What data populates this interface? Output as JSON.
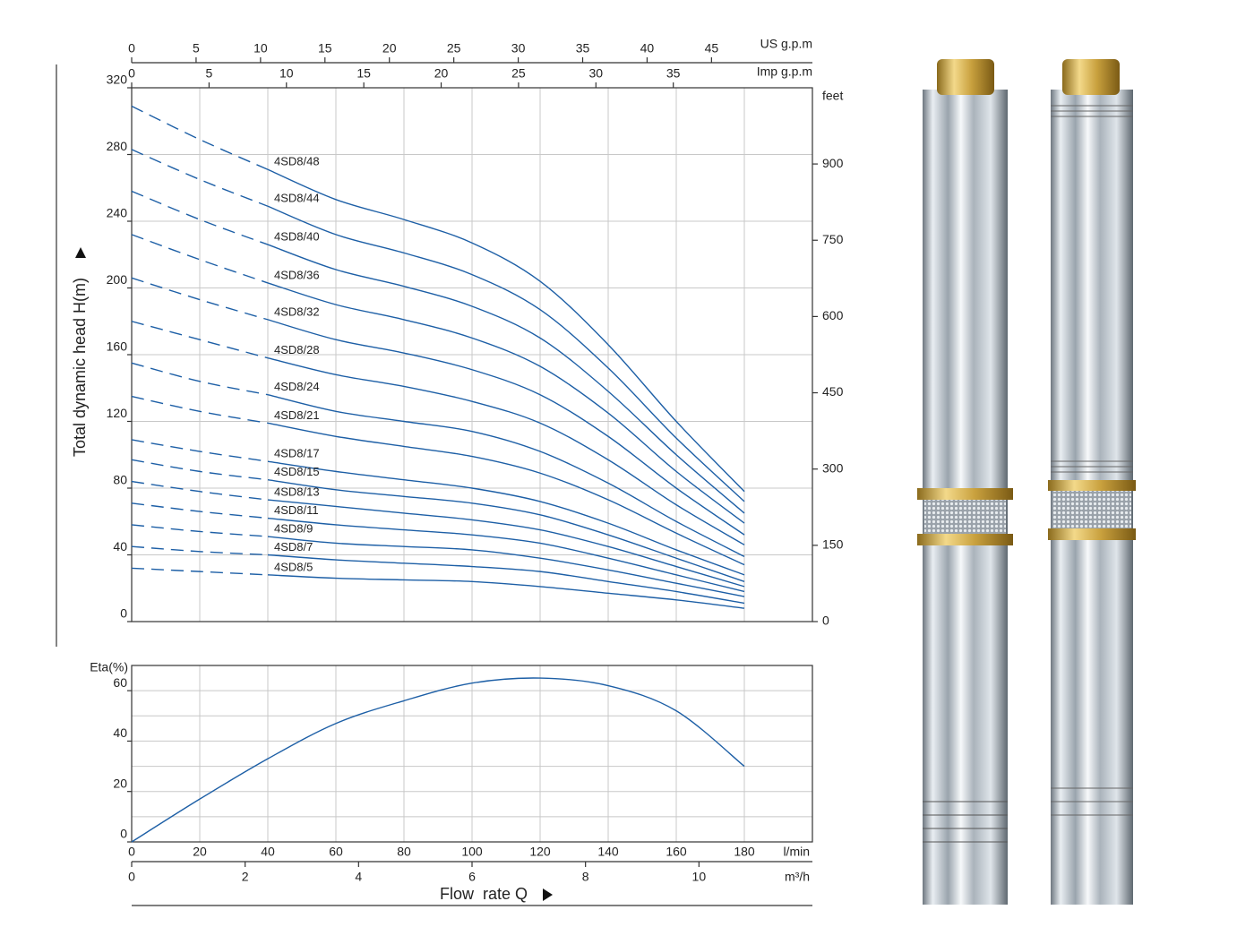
{
  "chart_data": [
    {
      "type": "line",
      "y_label": "Total dynamic head H(m)",
      "y2_label": "feet",
      "xlim": [
        0,
        200
      ],
      "ylim": [
        0,
        320
      ],
      "yticks": [
        0,
        40,
        80,
        120,
        160,
        200,
        240,
        280,
        320
      ],
      "y2lim": [
        0,
        1049.87
      ],
      "y2ticks": [
        0,
        150,
        300,
        450,
        600,
        750,
        900
      ],
      "grid": true,
      "grid_xticks": [
        20,
        40,
        60,
        80,
        100,
        120,
        140,
        160,
        180
      ],
      "dashed_below_x": 40,
      "top_axes": [
        {
          "label": "US g.p.m",
          "xlim": [
            0,
            52.83
          ],
          "xticks": [
            0,
            5,
            10,
            15,
            20,
            25,
            30,
            35,
            40,
            45
          ]
        },
        {
          "label": "Imp g.p.m",
          "xlim": [
            0,
            43.99
          ],
          "xticks": [
            0,
            5,
            10,
            15,
            20,
            25,
            30,
            35
          ]
        }
      ],
      "x": [
        0,
        20,
        40,
        60,
        80,
        100,
        120,
        140,
        160,
        180
      ],
      "series": [
        {
          "name": "4SD8/48",
          "color": "#1d5fa6",
          "values": [
            309,
            289,
            271,
            253,
            241,
            227,
            204,
            166,
            120,
            78
          ]
        },
        {
          "name": "4SD8/44",
          "color": "#1d5fa6",
          "values": [
            283,
            265,
            249,
            232,
            221,
            208,
            187,
            152,
            110,
            72
          ]
        },
        {
          "name": "4SD8/40",
          "color": "#1d5fa6",
          "values": [
            258,
            241,
            226,
            211,
            201,
            189,
            170,
            138,
            100,
            65
          ]
        },
        {
          "name": "4SD8/36",
          "color": "#1d5fa6",
          "values": [
            232,
            217,
            203,
            190,
            181,
            170,
            153,
            125,
            90,
            59
          ]
        },
        {
          "name": "4SD8/32",
          "color": "#1d5fa6",
          "values": [
            206,
            193,
            181,
            169,
            161,
            151,
            136,
            111,
            80,
            52
          ]
        },
        {
          "name": "4SD8/28",
          "color": "#1d5fa6",
          "values": [
            180,
            169,
            158,
            148,
            141,
            132,
            119,
            97,
            70,
            46
          ]
        },
        {
          "name": "4SD8/24",
          "color": "#1d5fa6",
          "values": [
            155,
            144,
            136,
            126,
            120,
            114,
            102,
            83,
            60,
            39
          ]
        },
        {
          "name": "4SD8/21",
          "color": "#1d5fa6",
          "values": [
            135,
            126,
            119,
            111,
            105,
            99,
            89,
            73,
            53,
            34
          ]
        },
        {
          "name": "4SD8/17",
          "color": "#1d5fa6",
          "values": [
            109,
            102,
            96,
            90,
            85,
            80,
            72,
            59,
            43,
            28
          ]
        },
        {
          "name": "4SD8/15",
          "color": "#1d5fa6",
          "values": [
            97,
            90,
            85,
            79,
            75,
            71,
            64,
            52,
            38,
            24
          ]
        },
        {
          "name": "4SD8/13",
          "color": "#1d5fa6",
          "values": [
            84,
            78,
            73,
            69,
            65,
            61,
            55,
            45,
            33,
            21
          ]
        },
        {
          "name": "4SD8/11",
          "color": "#1d5fa6",
          "values": [
            71,
            66,
            62,
            58,
            55,
            52,
            47,
            38,
            28,
            18
          ]
        },
        {
          "name": "4SD8/9",
          "color": "#1d5fa6",
          "values": [
            58,
            54,
            51,
            47,
            45,
            43,
            38,
            31,
            23,
            15
          ]
        },
        {
          "name": "4SD8/7",
          "color": "#1d5fa6",
          "values": [
            45,
            42,
            40,
            37,
            35,
            33,
            30,
            24,
            18,
            11
          ]
        },
        {
          "name": "4SD8/5",
          "color": "#1d5fa6",
          "values": [
            32,
            30,
            28,
            26,
            25,
            24,
            21,
            17,
            13,
            8
          ]
        }
      ]
    },
    {
      "type": "line",
      "y_label": "Eta(%)",
      "x_label": "Flow  rate Q",
      "x_unit": "l/min",
      "xlim": [
        0,
        200
      ],
      "xticks": [
        0,
        20,
        40,
        60,
        80,
        100,
        120,
        140,
        160,
        180
      ],
      "ylim": [
        0,
        70
      ],
      "yticks": [
        0,
        20,
        40,
        60
      ],
      "grid": true,
      "minor_yticks": [
        10,
        30,
        50,
        70
      ],
      "second_x_axis": {
        "label": "m³/h",
        "xlim": [
          0,
          12
        ],
        "xticks": [
          0,
          2,
          4,
          6,
          8,
          10
        ]
      },
      "x": [
        0,
        20,
        40,
        60,
        80,
        100,
        120,
        140,
        160,
        180
      ],
      "values": [
        0,
        17,
        33,
        47,
        56,
        63,
        65,
        62,
        52,
        30
      ],
      "color": "#1d5fa6"
    }
  ]
}
